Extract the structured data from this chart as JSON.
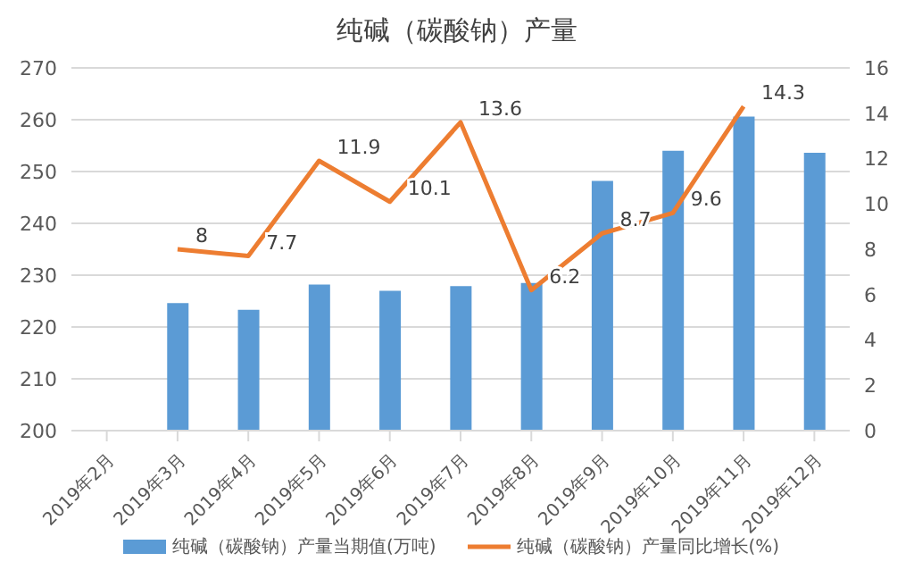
{
  "chart_data": {
    "type": "bar",
    "title": "纯碱（碳酸钠）产量",
    "categories": [
      "2019年2月",
      "2019年3月",
      "2019年4月",
      "2019年5月",
      "2019年6月",
      "2019年7月",
      "2019年8月",
      "2019年9月",
      "2019年10月",
      "2019年11月",
      "2019年12月"
    ],
    "series": [
      {
        "name": "纯碱（碳酸钠）产量当期值(万吨)",
        "color": "#5b9bd5",
        "values": [
          null,
          224.6,
          223.3,
          228.2,
          227,
          227.9,
          228.5,
          248.2,
          254,
          260.6,
          253.6
        ]
      },
      {
        "name": "纯碱（碳酸钠）产量同比增长(%)",
        "type": "line",
        "axis": "y2",
        "color": "#ed7d31",
        "values": [
          null,
          8,
          7.7,
          11.9,
          10.1,
          13.6,
          6.2,
          8.7,
          9.6,
          14.3,
          null
        ],
        "value_labels": [
          null,
          "8",
          "7.7",
          "11.9",
          "10.1",
          "13.6",
          "6.2",
          "8.7",
          "9.6",
          "14.3",
          null
        ]
      }
    ],
    "ylim": [
      200,
      270
    ],
    "yticks": [
      200,
      210,
      220,
      230,
      240,
      250,
      260,
      270
    ],
    "y2lim": [
      0,
      16
    ],
    "y2ticks": [
      0,
      2,
      4,
      6,
      8,
      10,
      12,
      14,
      16
    ],
    "grid": "y",
    "legend": "bottom",
    "marker": "none"
  }
}
